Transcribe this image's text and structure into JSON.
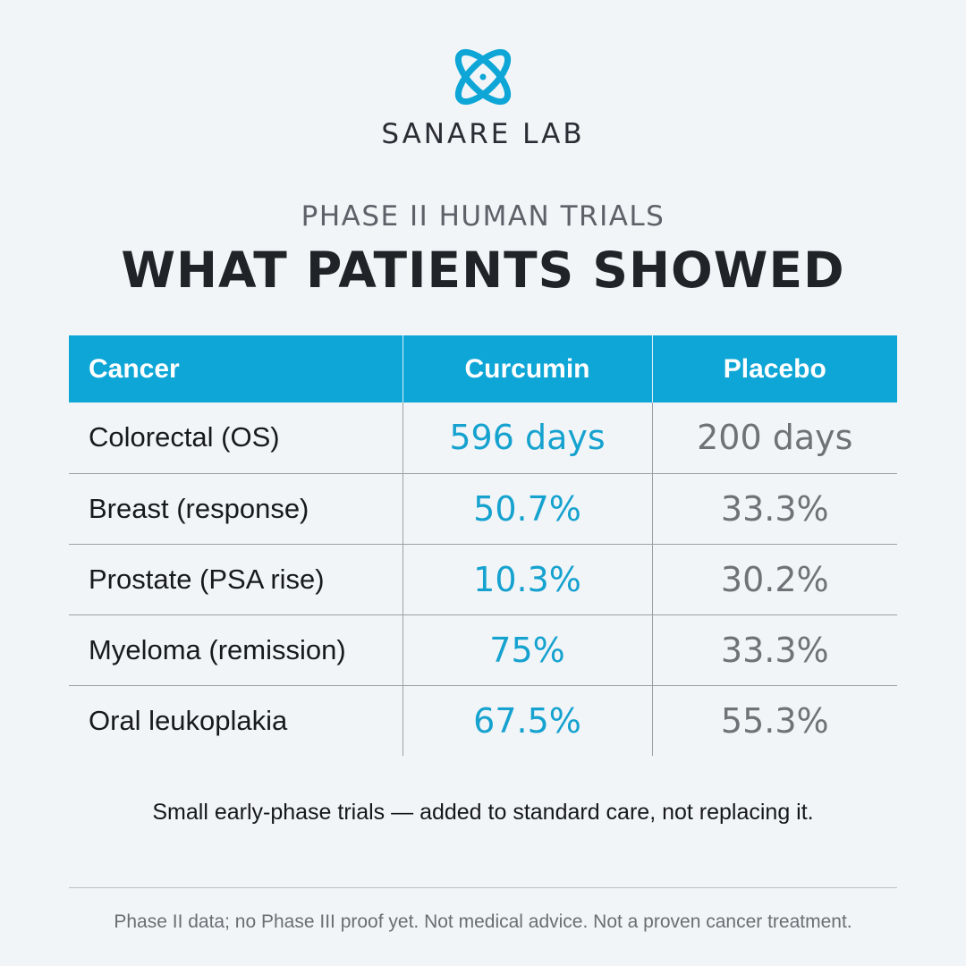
{
  "brand": {
    "name": "SANARE LAB",
    "logo_icon": "atom-orbit-icon",
    "accent_color": "#0ea6d6"
  },
  "header": {
    "kicker": "PHASE II HUMAN TRIALS",
    "headline": "WHAT PATIENTS SHOWED"
  },
  "table": {
    "columns": [
      "Cancer",
      "Curcumin",
      "Placebo"
    ],
    "rows": [
      {
        "cancer": "Colorectal (OS)",
        "curcumin": "596 days",
        "placebo": "200 days"
      },
      {
        "cancer": "Breast (response)",
        "curcumin": "50.7%",
        "placebo": "33.3%"
      },
      {
        "cancer": "Prostate (PSA rise)",
        "curcumin": "10.3%",
        "placebo": "30.2%"
      },
      {
        "cancer": "Myeloma (remission)",
        "curcumin": "75%",
        "placebo": "33.3%"
      },
      {
        "cancer": "Oral leukoplakia",
        "curcumin": "67.5%",
        "placebo": "55.3%"
      }
    ],
    "colors": {
      "header_bg": "#0ea6d6",
      "curcumin_text": "#16a2cf",
      "placebo_text": "#6f7378"
    }
  },
  "note": "Small early-phase trials — added to standard care, not replacing it.",
  "disclaimer": "Phase II data; no Phase III proof yet. Not medical advice. Not a proven cancer treatment."
}
